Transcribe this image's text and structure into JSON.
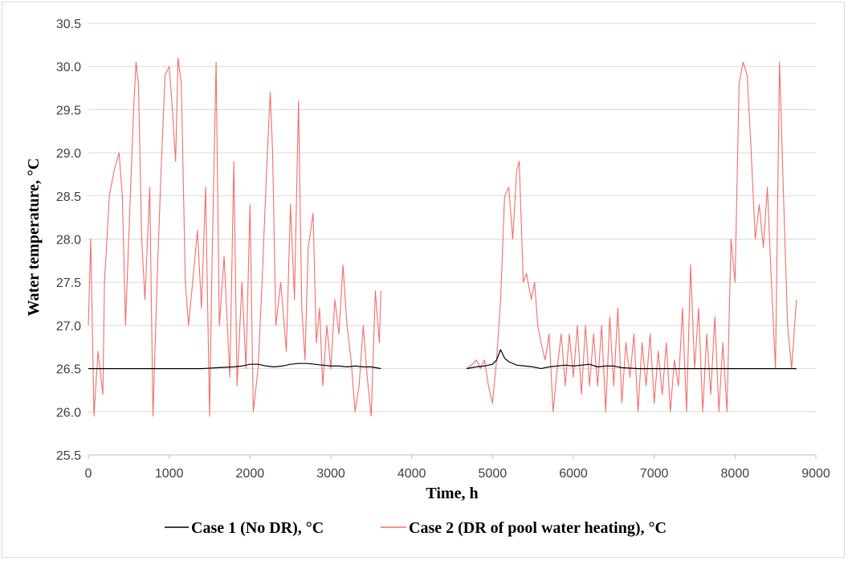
{
  "chart_data": {
    "type": "line",
    "title": "",
    "xlabel": "Time, h",
    "ylabel": "Water temperature, °C",
    "xlim": [
      0,
      9000
    ],
    "ylim": [
      25.5,
      30.5
    ],
    "x_ticks": [
      "0",
      "1000",
      "2000",
      "3000",
      "4000",
      "5000",
      "6000",
      "7000",
      "8000",
      "9000"
    ],
    "y_ticks": [
      "25.5",
      "26.0",
      "26.5",
      "27.0",
      "27.5",
      "28.0",
      "28.5",
      "29.0",
      "29.5",
      "30.0",
      "30.5"
    ],
    "grid": "horizontal",
    "legend": "bottom",
    "series": [
      {
        "name": "Case 1 (No DR), °C",
        "color": "#000000",
        "segments": [
          {
            "x": [
              0,
              300,
              500,
              800,
              1000,
              1200,
              1400,
              1600,
              1800,
              1900,
              2000,
              2100,
              2200,
              2300,
              2400,
              2500,
              2600,
              2700,
              2800,
              2900,
              3000,
              3100,
              3200,
              3300,
              3400,
              3500,
              3620
            ],
            "y": [
              26.5,
              26.5,
              26.5,
              26.5,
              26.5,
              26.5,
              26.5,
              26.51,
              26.52,
              26.53,
              26.55,
              26.55,
              26.53,
              26.52,
              26.53,
              26.55,
              26.56,
              26.56,
              26.55,
              26.54,
              26.53,
              26.53,
              26.52,
              26.53,
              26.52,
              26.52,
              26.5
            ]
          },
          {
            "x": [
              4680,
              4800,
              4900,
              5000,
              5050,
              5100,
              5150,
              5200,
              5300,
              5400,
              5500,
              5600,
              5700,
              5800,
              5900,
              6000,
              6100,
              6200,
              6300,
              6400,
              6500,
              6600,
              6800,
              7000,
              7500,
              8000,
              8500,
              8760
            ],
            "y": [
              26.5,
              26.52,
              26.53,
              26.55,
              26.6,
              26.72,
              26.62,
              26.58,
              26.54,
              26.53,
              26.52,
              26.5,
              26.52,
              26.53,
              26.54,
              26.53,
              26.54,
              26.55,
              26.52,
              26.53,
              26.53,
              26.51,
              26.5,
              26.5,
              26.5,
              26.5,
              26.5,
              26.5
            ]
          }
        ]
      },
      {
        "name": "Case 2 (DR of pool water heating), °C",
        "color": "#f26d6d",
        "segments": [
          {
            "x": [
              0,
              30,
              70,
              120,
              180,
              200,
              260,
              320,
              380,
              420,
              460,
              520,
              560,
              590,
              620,
              660,
              700,
              760,
              800,
              850,
              900,
              950,
              1000,
              1040,
              1080,
              1110,
              1150,
              1200,
              1240,
              1300,
              1350,
              1400,
              1450,
              1500,
              1530,
              1580,
              1620,
              1680,
              1750,
              1800,
              1840,
              1900,
              1950,
              2000,
              2040,
              2100,
              2150,
              2200,
              2250,
              2280,
              2320,
              2380,
              2450,
              2500,
              2550,
              2600,
              2640,
              2680,
              2720,
              2780,
              2820,
              2860,
              2900,
              2950,
              3000,
              3050,
              3100,
              3150,
              3200,
              3250,
              3300,
              3350,
              3400,
              3450,
              3500,
              3550,
              3600,
              3620
            ],
            "y": [
              27.0,
              28.0,
              25.95,
              26.7,
              26.2,
              27.5,
              28.5,
              28.8,
              29.0,
              28.5,
              27.0,
              28.5,
              29.5,
              30.05,
              29.8,
              28.0,
              27.3,
              28.6,
              25.95,
              27.5,
              28.8,
              29.9,
              30.0,
              29.5,
              28.9,
              30.1,
              29.8,
              27.5,
              27.0,
              27.6,
              28.1,
              27.2,
              28.6,
              25.95,
              27.7,
              30.05,
              27.0,
              27.8,
              26.4,
              28.9,
              26.3,
              27.5,
              26.5,
              28.4,
              26.0,
              26.5,
              27.5,
              28.7,
              29.7,
              29.0,
              27.0,
              27.5,
              26.7,
              28.4,
              27.3,
              29.6,
              27.2,
              26.6,
              27.9,
              28.3,
              26.8,
              27.2,
              26.3,
              27.0,
              26.5,
              27.3,
              26.9,
              27.7,
              27.0,
              26.6,
              26.0,
              26.3,
              27.0,
              26.4,
              25.95,
              27.4,
              26.8,
              27.4
            ]
          },
          {
            "x": [
              4680,
              4750,
              4800,
              4850,
              4900,
              4950,
              5000,
              5050,
              5100,
              5150,
              5200,
              5250,
              5300,
              5330,
              5380,
              5420,
              5480,
              5520,
              5560,
              5600,
              5650,
              5700,
              5750,
              5800,
              5850,
              5900,
              5950,
              6000,
              6050,
              6100,
              6150,
              6200,
              6250,
              6300,
              6350,
              6400,
              6450,
              6500,
              6550,
              6600,
              6650,
              6700,
              6750,
              6800,
              6850,
              6900,
              6950,
              7000,
              7050,
              7100,
              7150,
              7200,
              7250,
              7300,
              7350,
              7400,
              7450,
              7500,
              7550,
              7600,
              7650,
              7700,
              7750,
              7800,
              7850,
              7900,
              7950,
              8000,
              8050,
              8100,
              8150,
              8200,
              8250,
              8300,
              8350,
              8400,
              8450,
              8500,
              8550,
              8600,
              8650,
              8700,
              8760
            ],
            "y": [
              26.5,
              26.55,
              26.6,
              26.5,
              26.6,
              26.3,
              26.1,
              26.6,
              27.3,
              28.5,
              28.6,
              28.0,
              28.8,
              28.9,
              27.5,
              27.6,
              27.3,
              27.5,
              27.0,
              26.8,
              26.6,
              26.9,
              26.0,
              26.5,
              26.9,
              26.3,
              26.9,
              26.4,
              27.0,
              26.2,
              27.0,
              26.3,
              26.9,
              26.3,
              27.0,
              26.0,
              27.1,
              26.3,
              27.2,
              26.1,
              26.8,
              26.4,
              26.9,
              26.0,
              26.8,
              26.3,
              26.9,
              26.1,
              26.7,
              26.2,
              26.8,
              26.0,
              26.6,
              26.3,
              27.2,
              26.0,
              27.7,
              26.5,
              27.2,
              26.0,
              26.9,
              26.2,
              27.1,
              26.0,
              26.8,
              26.0,
              28.0,
              27.5,
              29.8,
              30.05,
              29.9,
              29.0,
              28.0,
              28.4,
              27.9,
              28.6,
              27.5,
              26.5,
              30.05,
              28.5,
              27.0,
              26.5,
              27.3
            ]
          }
        ]
      }
    ]
  }
}
